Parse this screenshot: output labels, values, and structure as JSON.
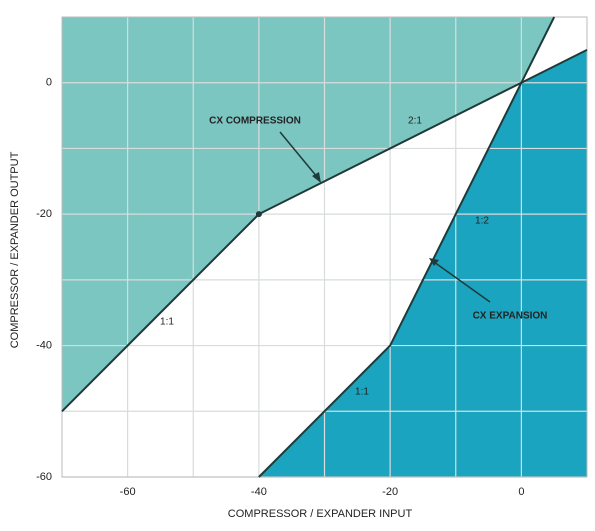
{
  "chart_data": {
    "type": "line",
    "x_label": "COMPRESSOR / EXPANDER INPUT",
    "y_label": "COMPRESSOR / EXPANDER OUTPUT",
    "xlim": [
      -70,
      10
    ],
    "ylim": [
      -60,
      10
    ],
    "xticks": [
      {
        "value": -60,
        "label": "-60"
      },
      {
        "value": -50,
        "label": null
      },
      {
        "value": -40,
        "label": "-40"
      },
      {
        "value": -30,
        "label": null
      },
      {
        "value": -20,
        "label": "-20"
      },
      {
        "value": -10,
        "label": null
      },
      0
    ],
    "yticks": [
      {
        "value": -60,
        "label": "-60"
      },
      {
        "value": -50,
        "label": null
      },
      {
        "value": -40,
        "label": "-40"
      },
      {
        "value": -30,
        "label": null
      },
      {
        "value": -20,
        "label": "-20"
      },
      {
        "value": -10,
        "label": null
      },
      0
    ],
    "grid": true,
    "series": [
      {
        "name": "CX COMPRESSION",
        "color": "#7cc6c2",
        "x": [
          -70,
          -40,
          0,
          10
        ],
        "values": [
          -50,
          -20,
          0,
          5
        ]
      },
      {
        "name": "CX EXPANSION",
        "color": "#1ba4bf",
        "x": [
          -40,
          -20,
          0,
          5
        ],
        "values": [
          -60,
          -40,
          0,
          10
        ]
      }
    ],
    "annotations": [
      "2:1",
      "1:2",
      "1:1",
      "1:1"
    ]
  }
}
